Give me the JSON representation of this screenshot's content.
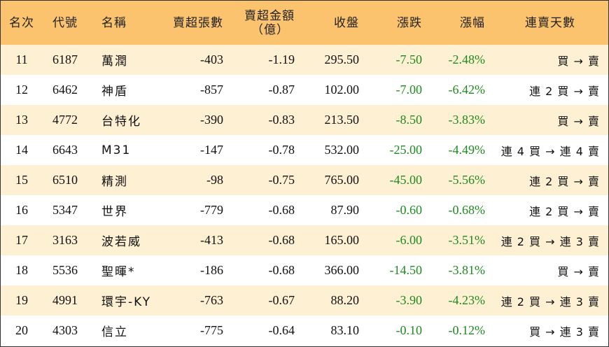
{
  "headers": {
    "rank": "名次",
    "code": "代號",
    "name": "名稱",
    "sell_shares": "賣超張數",
    "sell_amount_line1": "賣超金額",
    "sell_amount_line2": "（億）",
    "close": "收盤",
    "change": "漲跌",
    "change_pct": "漲幅",
    "streak": "連賣天數"
  },
  "rows": [
    {
      "rank": "11",
      "code": "6187",
      "name": "萬潤",
      "shares": "-403",
      "amount": "-1.19",
      "close": "295.50",
      "change": "-7.50",
      "pct": "-2.48%",
      "streak": "買 → 賣"
    },
    {
      "rank": "12",
      "code": "6462",
      "name": "神盾",
      "shares": "-857",
      "amount": "-0.87",
      "close": "102.00",
      "change": "-7.00",
      "pct": "-6.42%",
      "streak": "連 2 買 → 賣"
    },
    {
      "rank": "13",
      "code": "4772",
      "name": "台特化",
      "shares": "-390",
      "amount": "-0.83",
      "close": "213.50",
      "change": "-8.50",
      "pct": "-3.83%",
      "streak": "買 → 賣"
    },
    {
      "rank": "14",
      "code": "6643",
      "name": "M31",
      "shares": "-147",
      "amount": "-0.78",
      "close": "532.00",
      "change": "-25.00",
      "pct": "-4.49%",
      "streak": "連 4 買 → 連 4 賣"
    },
    {
      "rank": "15",
      "code": "6510",
      "name": "精測",
      "shares": "-98",
      "amount": "-0.75",
      "close": "765.00",
      "change": "-45.00",
      "pct": "-5.56%",
      "streak": "連 2 買 → 賣"
    },
    {
      "rank": "16",
      "code": "5347",
      "name": "世界",
      "shares": "-779",
      "amount": "-0.68",
      "close": "87.90",
      "change": "-0.60",
      "pct": "-0.68%",
      "streak": "連 2 買 → 賣"
    },
    {
      "rank": "17",
      "code": "3163",
      "name": "波若威",
      "shares": "-413",
      "amount": "-0.68",
      "close": "165.00",
      "change": "-6.00",
      "pct": "-3.51%",
      "streak": "連 2 買 → 連 3 賣"
    },
    {
      "rank": "18",
      "code": "5536",
      "name": "聖暉*",
      "shares": "-186",
      "amount": "-0.68",
      "close": "366.00",
      "change": "-14.50",
      "pct": "-3.81%",
      "streak": "買 → 賣"
    },
    {
      "rank": "19",
      "code": "4991",
      "name": "環宇-KY",
      "shares": "-763",
      "amount": "-0.67",
      "close": "88.20",
      "change": "-3.90",
      "pct": "-4.23%",
      "streak": "連 2 買 → 連 3 賣"
    },
    {
      "rank": "20",
      "code": "4303",
      "name": "信立",
      "shares": "-775",
      "amount": "-0.64",
      "close": "83.10",
      "change": "-0.10",
      "pct": "-0.12%",
      "streak": "買 → 連 3 賣"
    }
  ],
  "colors": {
    "header_bg": "#fbc36e",
    "stripe_bg": "#fef0d3",
    "negative_change": "#1f8a1f"
  }
}
